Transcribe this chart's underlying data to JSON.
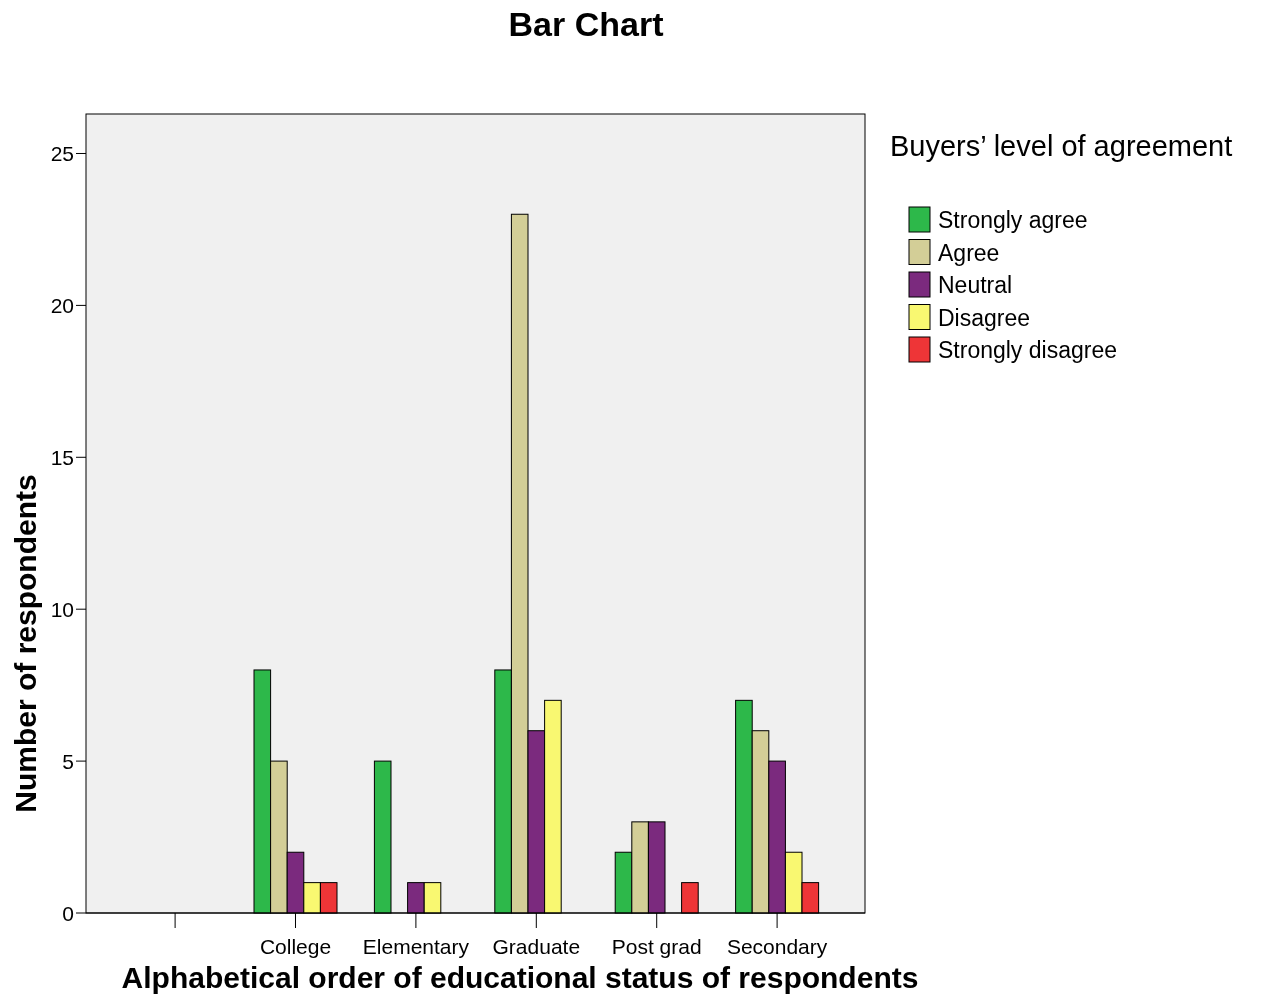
{
  "chart_data": {
    "type": "bar",
    "title": "Bar Chart",
    "xlabel": "Alphabetical order of educational status of respondents",
    "ylabel": "Number of respondents",
    "legend_title": "Buyers’ level of agreement",
    "categories": [
      null,
      "College",
      "Elementary",
      "Graduate",
      "Post grad",
      "Secondary"
    ],
    "series": [
      {
        "name": "Strongly agree",
        "color": "#2db84a",
        "values": [
          null,
          8,
          5,
          8,
          2,
          7
        ]
      },
      {
        "name": "Agree",
        "color": "#d3ce97",
        "values": [
          null,
          5,
          null,
          23,
          3,
          6
        ]
      },
      {
        "name": "Neutral",
        "color": "#7b2a7e",
        "values": [
          null,
          2,
          1,
          6,
          3,
          5
        ]
      },
      {
        "name": "Disagree",
        "color": "#f9f871",
        "values": [
          null,
          1,
          1,
          7,
          null,
          2
        ]
      },
      {
        "name": "Strongly disagree",
        "color": "#ee3537",
        "values": [
          null,
          1,
          null,
          null,
          1,
          1
        ]
      }
    ],
    "ylim": [
      0,
      26.3
    ],
    "yticks": [
      0,
      5,
      10,
      15,
      20,
      25
    ],
    "grid": false,
    "legend": "top right"
  }
}
